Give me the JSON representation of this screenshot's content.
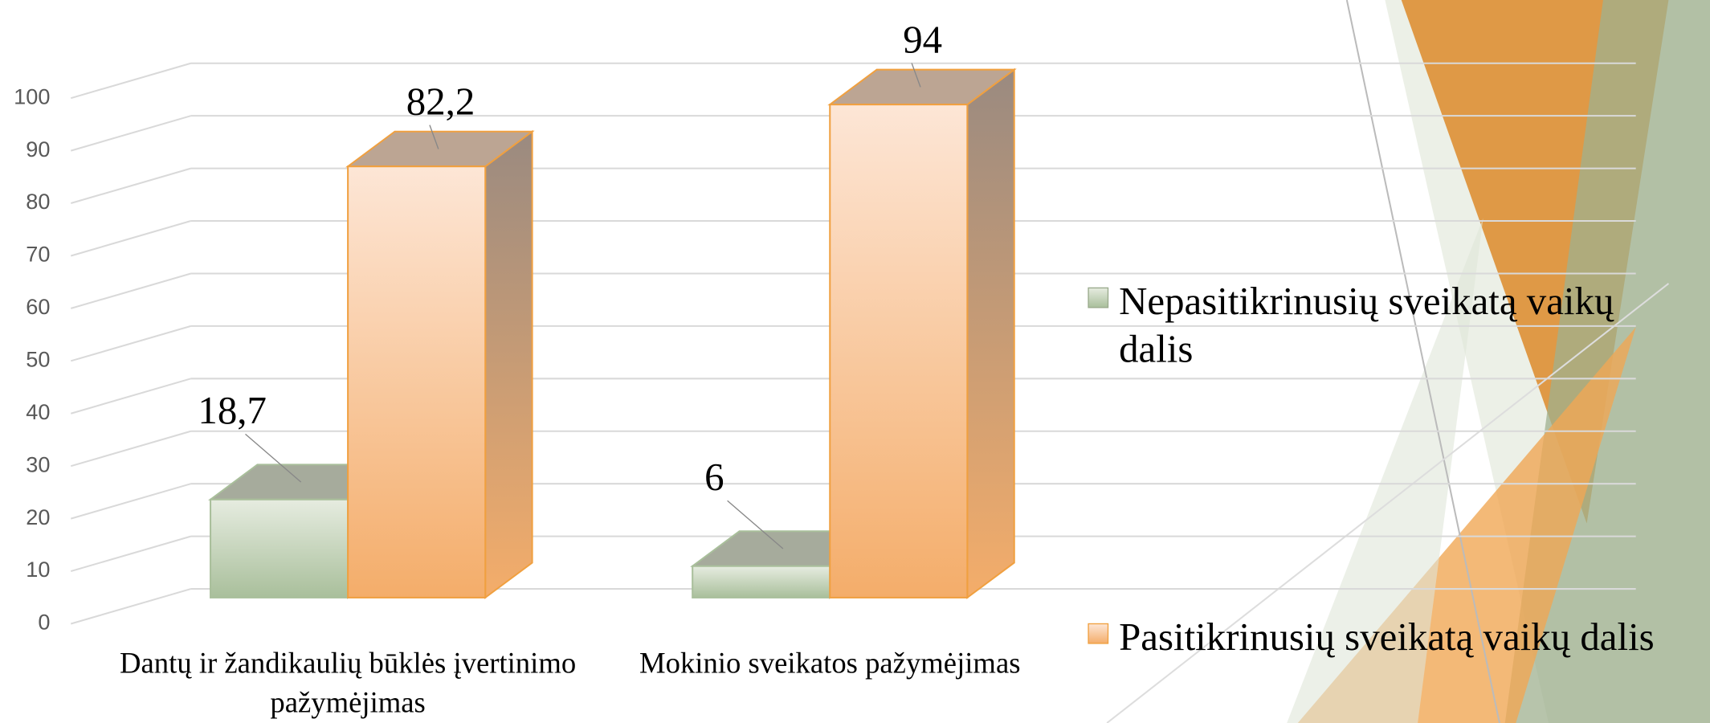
{
  "chart_data": {
    "type": "bar3d",
    "categories": [
      "Dantų ir žandikaulių būklės įvertinimo pažymėjimas",
      "Mokinio sveikatos pažymėjimas"
    ],
    "series": [
      {
        "name": "Nepasitikrinusių sveikatą vaikų dalis",
        "color": "#a9bf9b",
        "values": [
          18.7,
          6
        ],
        "value_labels": [
          "18,7",
          "6"
        ]
      },
      {
        "name": "Pasitikrinusių sveikatą vaikų dalis",
        "color": "#f4ad6a",
        "values": [
          82.2,
          94
        ],
        "value_labels": [
          "82,2",
          "94"
        ]
      }
    ],
    "ylim": [
      0,
      100
    ],
    "yticks": [
      0,
      10,
      20,
      30,
      40,
      50,
      60,
      70,
      80,
      90,
      100
    ],
    "grid": true,
    "legend": "right"
  }
}
